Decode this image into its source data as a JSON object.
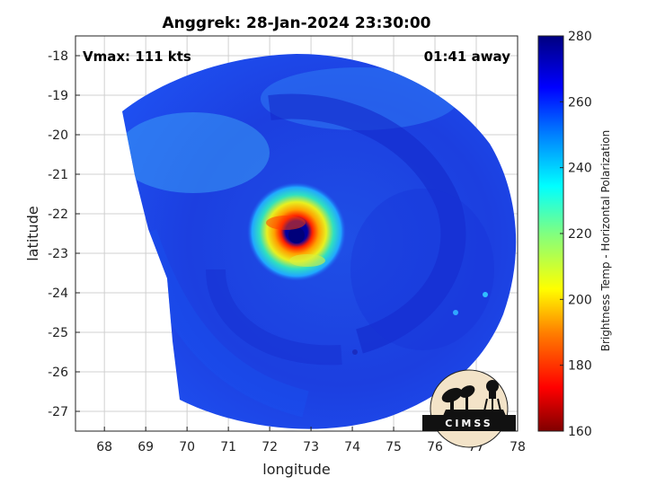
{
  "chart_data": {
    "type": "heatmap",
    "title": "Anggrek: 28-Jan-2024 23:30:00",
    "xlabel": "longitude",
    "ylabel": "latitude",
    "xlim": [
      67.3,
      78.0
    ],
    "ylim": [
      -27.5,
      -17.5
    ],
    "xticks": [
      "68",
      "69",
      "70",
      "71",
      "72",
      "73",
      "74",
      "75",
      "76",
      "77",
      "78"
    ],
    "yticks": [
      "-18",
      "-19",
      "-20",
      "-21",
      "-22",
      "-23",
      "-24",
      "-25",
      "-26",
      "-27"
    ],
    "grid": true,
    "annotations": {
      "left": "Vmax: 111 kts",
      "right": "01:41 away"
    },
    "storm_center": {
      "lon": 72.5,
      "lat": -22.5
    },
    "colorbar": {
      "label": "Brightness Temp - Horizontal Polarization",
      "range": [
        160,
        280
      ],
      "ticks": [
        "160",
        "180",
        "200",
        "220",
        "240",
        "260",
        "280"
      ],
      "colormap": [
        "#800000",
        "#ff0000",
        "#ff8000",
        "#ffff00",
        "#80ff80",
        "#00ffff",
        "#0080ff",
        "#0000ff",
        "#000080"
      ]
    },
    "logo": "CIMSS"
  }
}
